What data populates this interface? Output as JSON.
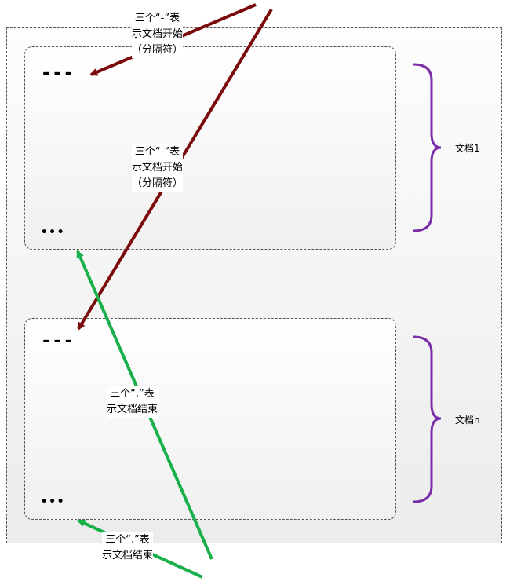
{
  "docs": [
    {
      "start_marker": "---",
      "end_marker": "•••",
      "label": "文档1"
    },
    {
      "start_marker": "---",
      "end_marker": "•••",
      "label": "文档n"
    }
  ],
  "annotations": {
    "start_top": {
      "lines": [
        "三个“-”表",
        "示文档开始",
        "（分隔符）"
      ]
    },
    "start_middle": {
      "lines": [
        "三个“-”表",
        "示文档开始",
        "（分隔符）"
      ]
    },
    "end_middle": {
      "lines": [
        "三个“.”表",
        "示文档结束"
      ]
    },
    "end_bottom": {
      "lines": [
        "三个“.”表",
        "示文档结束"
      ]
    }
  },
  "colors": {
    "start_arrow": "#7b0a0a",
    "end_arrow": "#19b04a",
    "brace": "#7a2fa8"
  }
}
